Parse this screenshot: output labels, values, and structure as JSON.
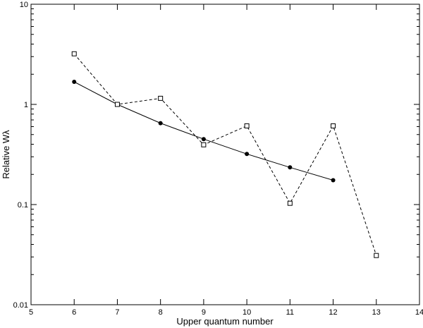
{
  "chart_data": {
    "type": "line",
    "title": "",
    "xlabel": "Upper quantum number",
    "ylabel": "Relative Wλ",
    "xlim": [
      5,
      14
    ],
    "ylim": [
      0.01,
      10
    ],
    "y_scale": "log",
    "grid": false,
    "legend": "none",
    "x_ticks": [
      5,
      6,
      7,
      8,
      9,
      10,
      11,
      12,
      13,
      14
    ],
    "x_tick_labels": [
      "5",
      "6",
      "7",
      "8",
      "9",
      "10",
      "11",
      "12",
      "13",
      "14"
    ],
    "y_ticks": [
      0.01,
      0.1,
      1,
      10
    ],
    "y_tick_labels": [
      "0.01",
      "0.1",
      "1",
      "10"
    ],
    "series": [
      {
        "style": "solid",
        "marker": "filled-circle",
        "color": "#000000",
        "x": [
          6,
          7,
          8,
          9,
          10,
          11,
          12
        ],
        "y": [
          1.68,
          1.0,
          0.65,
          0.45,
          0.32,
          0.235,
          0.175
        ]
      },
      {
        "style": "dashed",
        "marker": "open-square",
        "color": "#000000",
        "x": [
          6,
          7,
          8,
          9,
          10,
          11,
          12,
          13
        ],
        "y": [
          3.2,
          1.0,
          1.15,
          0.395,
          0.61,
          0.103,
          0.61,
          0.031
        ]
      }
    ]
  }
}
